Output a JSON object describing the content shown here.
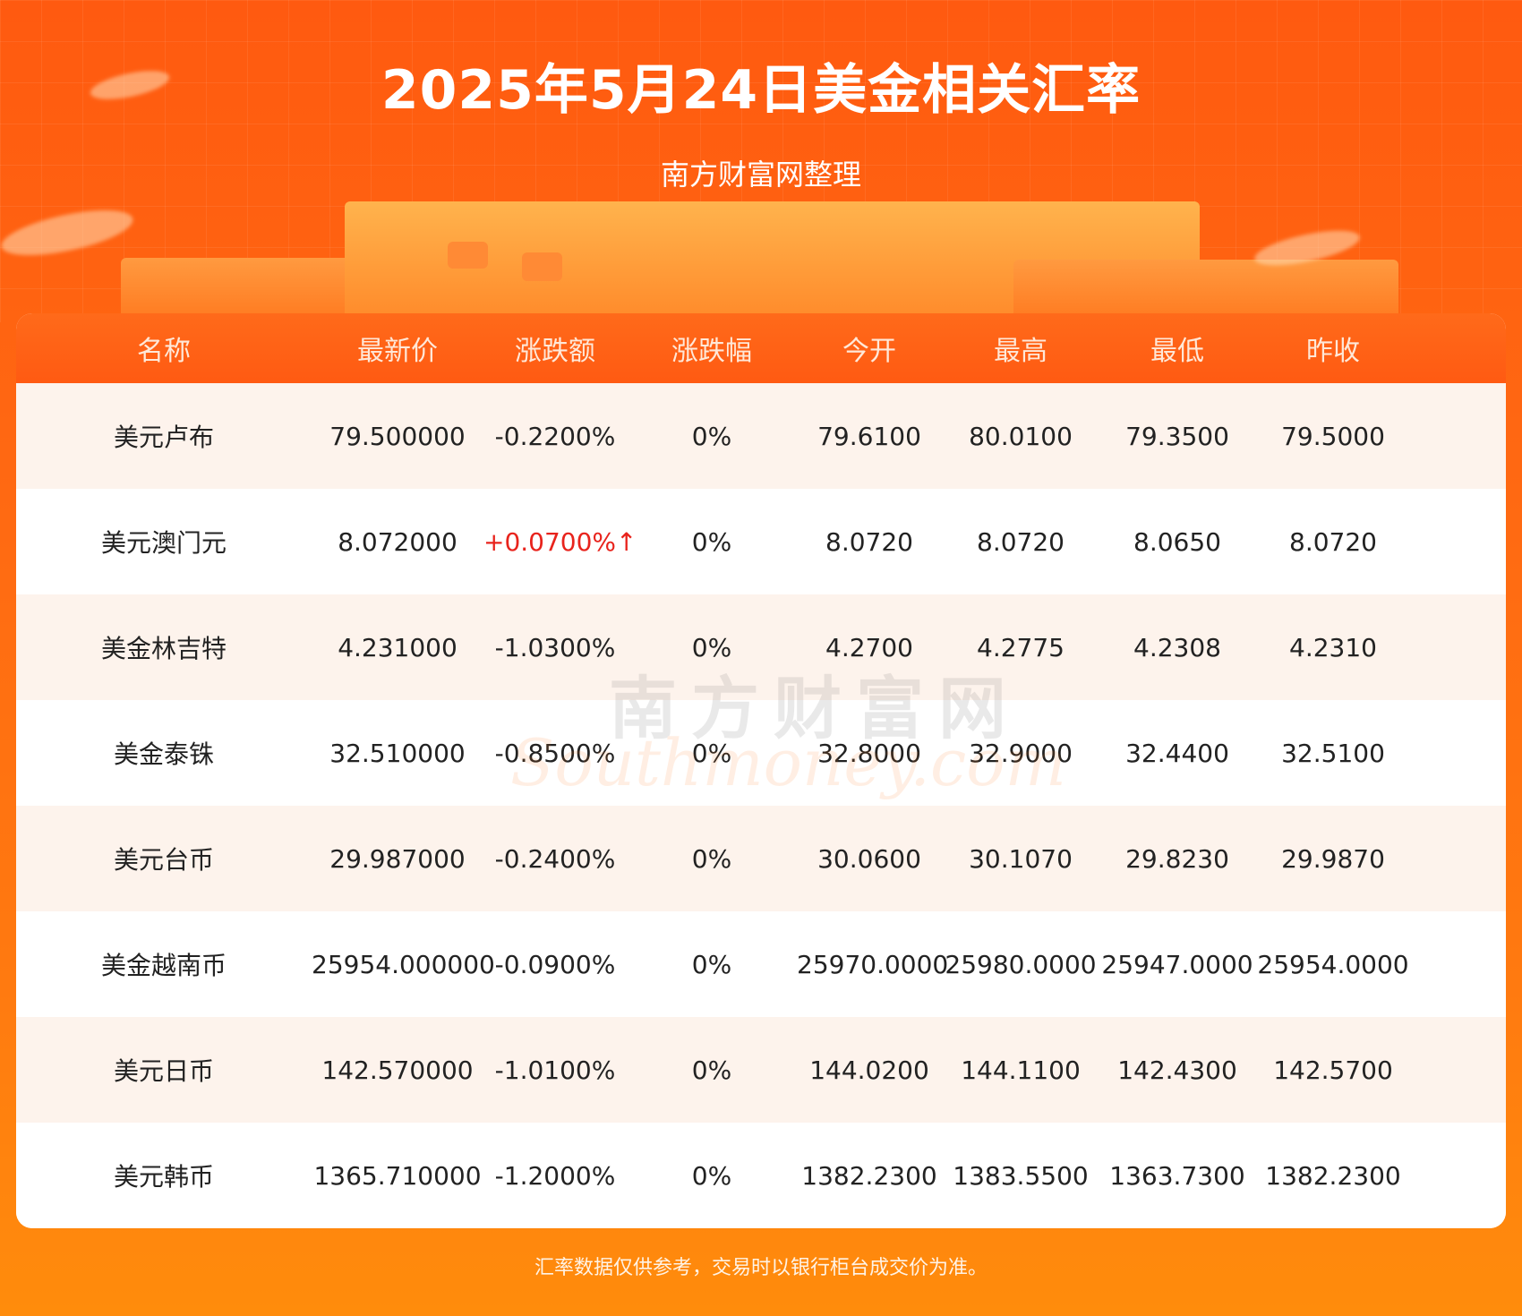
{
  "header": {
    "title": "2025年5月24日美金相关汇率",
    "subtitle": "南方财富网整理"
  },
  "table": {
    "columns": [
      "名称",
      "最新价",
      "涨跌额",
      "涨跌幅",
      "今开",
      "最高",
      "最低",
      "昨收"
    ],
    "rows": [
      [
        "美元卢布",
        "79.500000",
        "-0.2200%",
        "0%",
        "79.6100",
        "80.0100",
        "79.3500",
        "79.5000"
      ],
      [
        "美元澳门元",
        "8.072000",
        "+0.0700%↑",
        "0%",
        "8.0720",
        "8.0720",
        "8.0650",
        "8.0720"
      ],
      [
        "美金林吉特",
        "4.231000",
        "-1.0300%",
        "0%",
        "4.2700",
        "4.2775",
        "4.2308",
        "4.2310"
      ],
      [
        "美金泰铢",
        "32.510000",
        "-0.8500%",
        "0%",
        "32.8000",
        "32.9000",
        "32.4400",
        "32.5100"
      ],
      [
        "美元台币",
        "29.987000",
        "-0.2400%",
        "0%",
        "30.0600",
        "30.1070",
        "29.8230",
        "29.9870"
      ],
      [
        "美金越南币",
        "25954.000000",
        "-0.0900%",
        "0%",
        "25970.0000",
        "25980.0000",
        "25947.0000",
        "25954.0000"
      ],
      [
        "美元日币",
        "142.570000",
        "-1.0100%",
        "0%",
        "144.0200",
        "144.1100",
        "142.4300",
        "142.5700"
      ],
      [
        "美元韩币",
        "1365.710000",
        "-1.2000%",
        "0%",
        "1382.2300",
        "1383.5500",
        "1363.7300",
        "1382.2300"
      ]
    ],
    "up_color": "#e8231c",
    "header_color": "#ff5a12",
    "stripe_color": "#fdf3ec"
  },
  "watermark": {
    "cn": "南方财富网",
    "en": "Southmoney.com"
  },
  "footer": {
    "note": "汇率数据仅供参考，交易时以银行柜台成交价为准。"
  }
}
